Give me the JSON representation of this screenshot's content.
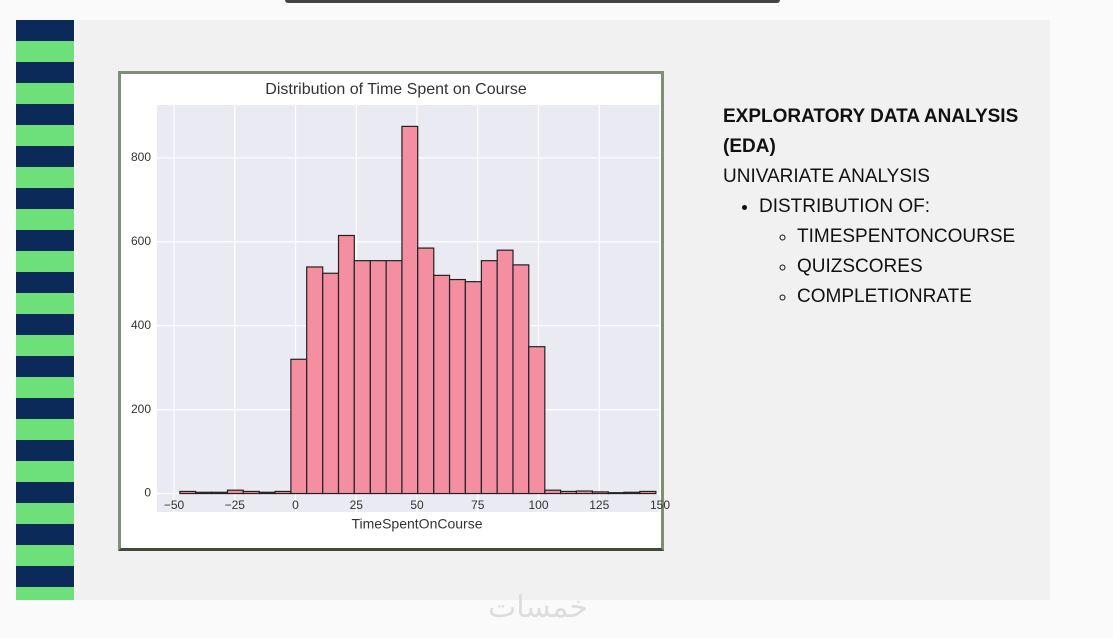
{
  "chart_data": {
    "type": "histogram",
    "title": "Distribution of Time Spent on Course",
    "x_label": "TimeSpentOnCourse",
    "bins": [
      -47.6,
      -41.1,
      -34.5,
      -28.0,
      -21.5,
      -14.9,
      -8.4,
      -1.9,
      4.6,
      11.2,
      17.7,
      24.2,
      30.8,
      37.3,
      43.8,
      50.3,
      56.9,
      63.4,
      69.9,
      76.5,
      83.0,
      89.5,
      96.0,
      102.6,
      109.1,
      115.6,
      122.2,
      128.7,
      135.2,
      141.7,
      148.3
    ],
    "counts": [
      5,
      3,
      3,
      8,
      5,
      3,
      5,
      320,
      540,
      525,
      615,
      555,
      555,
      555,
      875,
      585,
      520,
      510,
      505,
      555,
      580,
      545,
      350,
      8,
      5,
      6,
      4,
      2,
      3,
      5
    ],
    "color": "#f48ea1",
    "xlim": [
      -57,
      150
    ],
    "xticks": [
      {
        "value": -50,
        "label": "−50"
      },
      {
        "value": -25,
        "label": "−25"
      },
      0,
      25,
      50,
      75,
      100,
      125,
      150
    ],
    "ylim": [
      -44,
      926
    ],
    "yticks": [
      0,
      200,
      400,
      600,
      800
    ],
    "grid": true
  },
  "slide": {
    "heading": "EXPLORATORY DATA ANALYSIS (EDA)",
    "subheading": "UNIVARIATE ANALYSIS",
    "bullet": "DISTRIBUTION OF:",
    "sub_bullets": [
      "TIMESPENTONCOURSE",
      "QUIZSCORES",
      "COMPLETIONRATE"
    ]
  },
  "watermark": "خمسات"
}
